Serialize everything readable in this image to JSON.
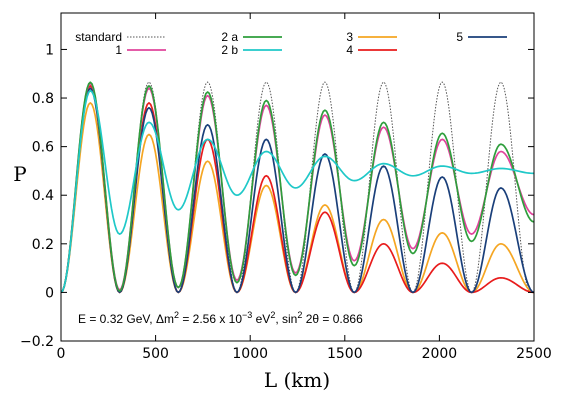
{
  "chart_data": {
    "type": "line",
    "xlabel": "L (km)",
    "ylabel": "P",
    "xlim": [
      0,
      2500
    ],
    "ylim": [
      -0.2,
      1.15
    ],
    "x_ticks": [
      "0",
      "500",
      "1000",
      "1500",
      "2000",
      "2500"
    ],
    "y_ticks": [
      "−0.2",
      "0",
      "0.2",
      "0.4",
      "0.6",
      "0.8",
      "1"
    ],
    "x_tick_values": [
      0,
      500,
      1000,
      1500,
      2000,
      2500
    ],
    "y_tick_values": [
      -0.2,
      0,
      0.2,
      0.4,
      0.6,
      0.8,
      1.0
    ],
    "grid": false,
    "legend_placement": "top",
    "annotation": {
      "parts": [
        {
          "t": "E = 0.32 GeV, ",
          "sup": false
        },
        {
          "t": "Δm",
          "sup": false
        },
        {
          "t": "2",
          "sup": true
        },
        {
          "t": " = 2.56 x 10",
          "sup": false
        },
        {
          "t": "−3",
          "sup": true
        },
        {
          "t": " eV",
          "sup": false
        },
        {
          "t": "2",
          "sup": true
        },
        {
          "t": ", sin",
          "sup": false
        },
        {
          "t": "2",
          "sup": true
        },
        {
          "t": " 2θ = 0.866",
          "sup": false
        }
      ]
    },
    "period_km": 310,
    "series": [
      {
        "name": "standard",
        "color": "#555555",
        "dashed": true,
        "x": [
          0,
          155,
          310,
          465,
          620,
          775,
          930,
          1085,
          1240,
          1395,
          1550,
          1705,
          1860,
          2015,
          2170,
          2325,
          2480
        ],
        "y": [
          0,
          0.866,
          0,
          0.866,
          0,
          0.866,
          0,
          0.866,
          0,
          0.866,
          0,
          0.866,
          0,
          0.866,
          0,
          0.866,
          0
        ]
      },
      {
        "name": "1",
        "color": "#e0449c",
        "dashed": false,
        "x": [
          0,
          155,
          310,
          465,
          620,
          775,
          930,
          1085,
          1240,
          1395,
          1550,
          1705,
          1860,
          2015,
          2170,
          2325,
          2500
        ],
        "y": [
          0,
          0.86,
          0.01,
          0.84,
          0.02,
          0.81,
          0.05,
          0.77,
          0.08,
          0.73,
          0.13,
          0.68,
          0.18,
          0.63,
          0.24,
          0.58,
          0.32
        ]
      },
      {
        "name": "2 a",
        "color": "#2e9e3c",
        "dashed": false,
        "x": [
          0,
          155,
          310,
          465,
          620,
          775,
          930,
          1085,
          1240,
          1395,
          1550,
          1705,
          1860,
          2015,
          2170,
          2325,
          2500
        ],
        "y": [
          0,
          0.865,
          0.005,
          0.85,
          0.02,
          0.825,
          0.04,
          0.79,
          0.07,
          0.75,
          0.11,
          0.7,
          0.16,
          0.655,
          0.21,
          0.61,
          0.29
        ]
      },
      {
        "name": "2 b",
        "color": "#1fc8c8",
        "dashed": false,
        "x": [
          0,
          155,
          310,
          465,
          620,
          775,
          930,
          1085,
          1240,
          1395,
          1550,
          1705,
          1860,
          2015,
          2170,
          2325,
          2500
        ],
        "y": [
          0,
          0.83,
          0.24,
          0.7,
          0.34,
          0.63,
          0.4,
          0.58,
          0.43,
          0.56,
          0.46,
          0.53,
          0.48,
          0.52,
          0.49,
          0.51,
          0.49
        ]
      },
      {
        "name": "3",
        "color": "#f5a623",
        "dashed": false,
        "x": [
          0,
          155,
          310,
          465,
          620,
          775,
          930,
          1085,
          1240,
          1395,
          1550,
          1705,
          1860,
          2015,
          2170,
          2325,
          2500
        ],
        "y": [
          0,
          0.78,
          0,
          0.65,
          0,
          0.54,
          0,
          0.44,
          0,
          0.36,
          0,
          0.3,
          0,
          0.245,
          0,
          0.2,
          0
        ]
      },
      {
        "name": "4",
        "color": "#e81c1c",
        "dashed": false,
        "x": [
          0,
          155,
          310,
          465,
          620,
          775,
          930,
          1085,
          1240,
          1395,
          1550,
          1705,
          1860,
          2015,
          2170,
          2325,
          2500
        ],
        "y": [
          0,
          0.85,
          0,
          0.78,
          0,
          0.63,
          0,
          0.48,
          0,
          0.33,
          0,
          0.2,
          0,
          0.12,
          0,
          0.06,
          0
        ]
      },
      {
        "name": "5",
        "color": "#1a3f7a",
        "dashed": false,
        "x": [
          0,
          155,
          310,
          465,
          620,
          775,
          930,
          1085,
          1240,
          1395,
          1550,
          1705,
          1860,
          2015,
          2170,
          2325,
          2500
        ],
        "y": [
          0,
          0.84,
          0,
          0.76,
          0,
          0.69,
          0,
          0.63,
          0,
          0.57,
          0,
          0.52,
          0,
          0.475,
          0,
          0.43,
          0
        ]
      }
    ]
  }
}
